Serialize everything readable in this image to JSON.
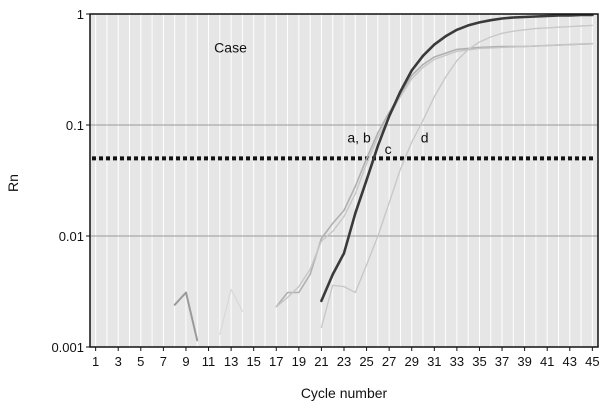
{
  "chart_data": {
    "type": "line",
    "title": "",
    "xlabel": "Cycle number",
    "ylabel": "Rn",
    "xlim": [
      0.5,
      45.5
    ],
    "ylim": [
      0.001,
      1
    ],
    "y_scale": "log",
    "grid": "dense vertical gridlines at every cycle; horizontal gridlines at each decade",
    "x_ticks": [
      1,
      3,
      5,
      7,
      9,
      11,
      13,
      15,
      17,
      19,
      21,
      23,
      25,
      27,
      29,
      31,
      33,
      35,
      37,
      39,
      41,
      43,
      45
    ],
    "x_tick_labels": [
      "1",
      "3",
      "5",
      "7",
      "9",
      "11",
      "13",
      "15",
      "17",
      "19",
      "21",
      "23",
      "25",
      "27",
      "29",
      "31",
      "33",
      "35",
      "37",
      "39",
      "41",
      "43",
      "45"
    ],
    "y_ticks": [
      0.001,
      0.01,
      0.1,
      1
    ],
    "y_tick_labels": [
      "0.001",
      "0.01",
      "0.1",
      "1"
    ],
    "threshold": 0.05,
    "threshold_color": "#111111",
    "annotations": [
      {
        "text": "Case",
        "x": 11.5,
        "y": 0.5
      },
      {
        "text": "a, b",
        "x": 23.3,
        "y": 0.077
      },
      {
        "text": "c",
        "x": 26.6,
        "y": 0.061
      },
      {
        "text": "d",
        "x": 29.8,
        "y": 0.077
      }
    ],
    "series": [
      {
        "color": "#b0b0b0",
        "width": 1.6,
        "x": [
          17,
          18,
          19,
          20,
          21,
          22,
          23,
          24,
          25,
          26,
          27,
          28,
          29,
          30,
          31,
          33,
          35,
          37,
          39,
          41,
          43,
          45
        ],
        "y": [
          0.0023,
          0.0031,
          0.0031,
          0.0045,
          0.0095,
          0.013,
          0.017,
          0.028,
          0.05,
          0.085,
          0.13,
          0.19,
          0.28,
          0.35,
          0.41,
          0.48,
          0.5,
          0.51,
          0.51,
          0.52,
          0.53,
          0.54
        ]
      },
      {
        "color": "#c6c6c6",
        "width": 1.4,
        "x": [
          17,
          18,
          19,
          20,
          21,
          22,
          23,
          24,
          25,
          26,
          27,
          28,
          29,
          30,
          31,
          33,
          35,
          37,
          39,
          41,
          43,
          45
        ],
        "y": [
          0.0023,
          0.0028,
          0.0035,
          0.005,
          0.009,
          0.011,
          0.015,
          0.024,
          0.045,
          0.078,
          0.12,
          0.18,
          0.26,
          0.33,
          0.39,
          0.46,
          0.49,
          0.5,
          0.51,
          0.52,
          0.53,
          0.54
        ]
      },
      {
        "color": "#3a3a3a",
        "width": 2.6,
        "x": [
          21,
          22,
          23,
          24,
          25,
          26,
          27,
          28,
          29,
          30,
          31,
          32,
          33,
          34,
          35,
          36,
          37,
          38,
          39,
          40,
          41,
          42,
          43,
          44,
          45
        ],
        "y": [
          0.0026,
          0.0045,
          0.007,
          0.016,
          0.032,
          0.065,
          0.12,
          0.2,
          0.31,
          0.42,
          0.53,
          0.63,
          0.72,
          0.79,
          0.84,
          0.88,
          0.91,
          0.93,
          0.94,
          0.95,
          0.96,
          0.97,
          0.97,
          0.98,
          0.98
        ]
      },
      {
        "color": "#c8c8c8",
        "width": 1.4,
        "x": [
          21,
          22,
          23,
          24,
          25,
          26,
          27,
          28,
          29,
          30,
          31,
          32,
          33,
          34,
          35,
          36,
          37,
          38,
          39,
          40,
          41,
          42,
          43,
          44,
          45
        ],
        "y": [
          0.0015,
          0.0036,
          0.0035,
          0.0031,
          0.0055,
          0.01,
          0.02,
          0.04,
          0.07,
          0.11,
          0.18,
          0.27,
          0.38,
          0.48,
          0.56,
          0.62,
          0.67,
          0.7,
          0.72,
          0.74,
          0.75,
          0.76,
          0.77,
          0.78,
          0.79
        ]
      },
      {
        "color": "#9a9a9a",
        "width": 2.0,
        "x": [
          8,
          9,
          10
        ],
        "y": [
          0.0024,
          0.0031,
          0.00115
        ]
      },
      {
        "color": "#d8d8d8",
        "width": 1.2,
        "x": [
          12,
          13,
          14
        ],
        "y": [
          0.0013,
          0.0033,
          0.0021
        ]
      }
    ]
  }
}
